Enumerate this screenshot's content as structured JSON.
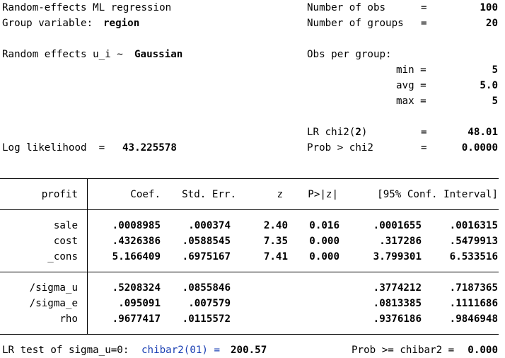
{
  "header": {
    "title": "Random-effects ML regression",
    "group_variable_label": "Group variable:",
    "group_variable_value": "region",
    "re_label": "Random effects u_i ~",
    "re_value": "Gaussian",
    "loglik_label": "Log likelihood  =",
    "loglik_value": "43.225578",
    "nobs_label": "Number of obs",
    "nobs_eq": "=",
    "nobs_value": "100",
    "ngroups_label": "Number of groups",
    "ngroups_eq": "=",
    "ngroups_value": "20",
    "obs_per_group_label": "Obs per group:",
    "min_label": "min =",
    "min_value": "5",
    "avg_label": "avg =",
    "avg_value": "5.0",
    "max_label": "max =",
    "max_value": "5",
    "lr_label_pre": "LR chi2(",
    "lr_df": "2",
    "lr_label_post": ")",
    "lr_eq": "=",
    "lr_value": "48.01",
    "prob_label": "Prob > chi2",
    "prob_eq": "=",
    "prob_value": "0.0000"
  },
  "table": {
    "columns": {
      "depvar": "profit",
      "coef": "Coef.",
      "se": "Std. Err.",
      "z": "z",
      "p": "P>|z|",
      "ci": "[95% Conf. Interval]"
    },
    "rows": [
      {
        "name": "sale",
        "coef": ".0008985",
        "se": ".000374",
        "z": "2.40",
        "p": "0.016",
        "lo": ".0001655",
        "hi": ".0016315"
      },
      {
        "name": "cost",
        "coef": ".4326386",
        "se": ".0588545",
        "z": "7.35",
        "p": "0.000",
        "lo": ".317286",
        "hi": ".5479913"
      },
      {
        "name": "_cons",
        "coef": "5.166409",
        "se": ".6975167",
        "z": "7.41",
        "p": "0.000",
        "lo": "3.799301",
        "hi": "6.533516"
      }
    ],
    "variance_rows": [
      {
        "name": "/sigma_u",
        "coef": ".5208324",
        "se": ".0855846",
        "lo": ".3774212",
        "hi": ".7187365"
      },
      {
        "name": "/sigma_e",
        "coef": ".095091",
        "se": ".007579",
        "lo": ".0813385",
        "hi": ".1111686"
      },
      {
        "name": "rho",
        "coef": ".9677417",
        "se": ".0115572",
        "lo": ".9376186",
        "hi": ".9846948"
      }
    ]
  },
  "footer": {
    "lr_test_label": "LR test of sigma_u=0:",
    "chibar_label": "chibar2(01) =",
    "chibar_value": "200.57",
    "prob_label": "Prob >= chibar2 =",
    "prob_value": "0.000"
  },
  "colors": {
    "text": "#000000",
    "link_blue": "#1a3fb3",
    "background": "#ffffff"
  }
}
